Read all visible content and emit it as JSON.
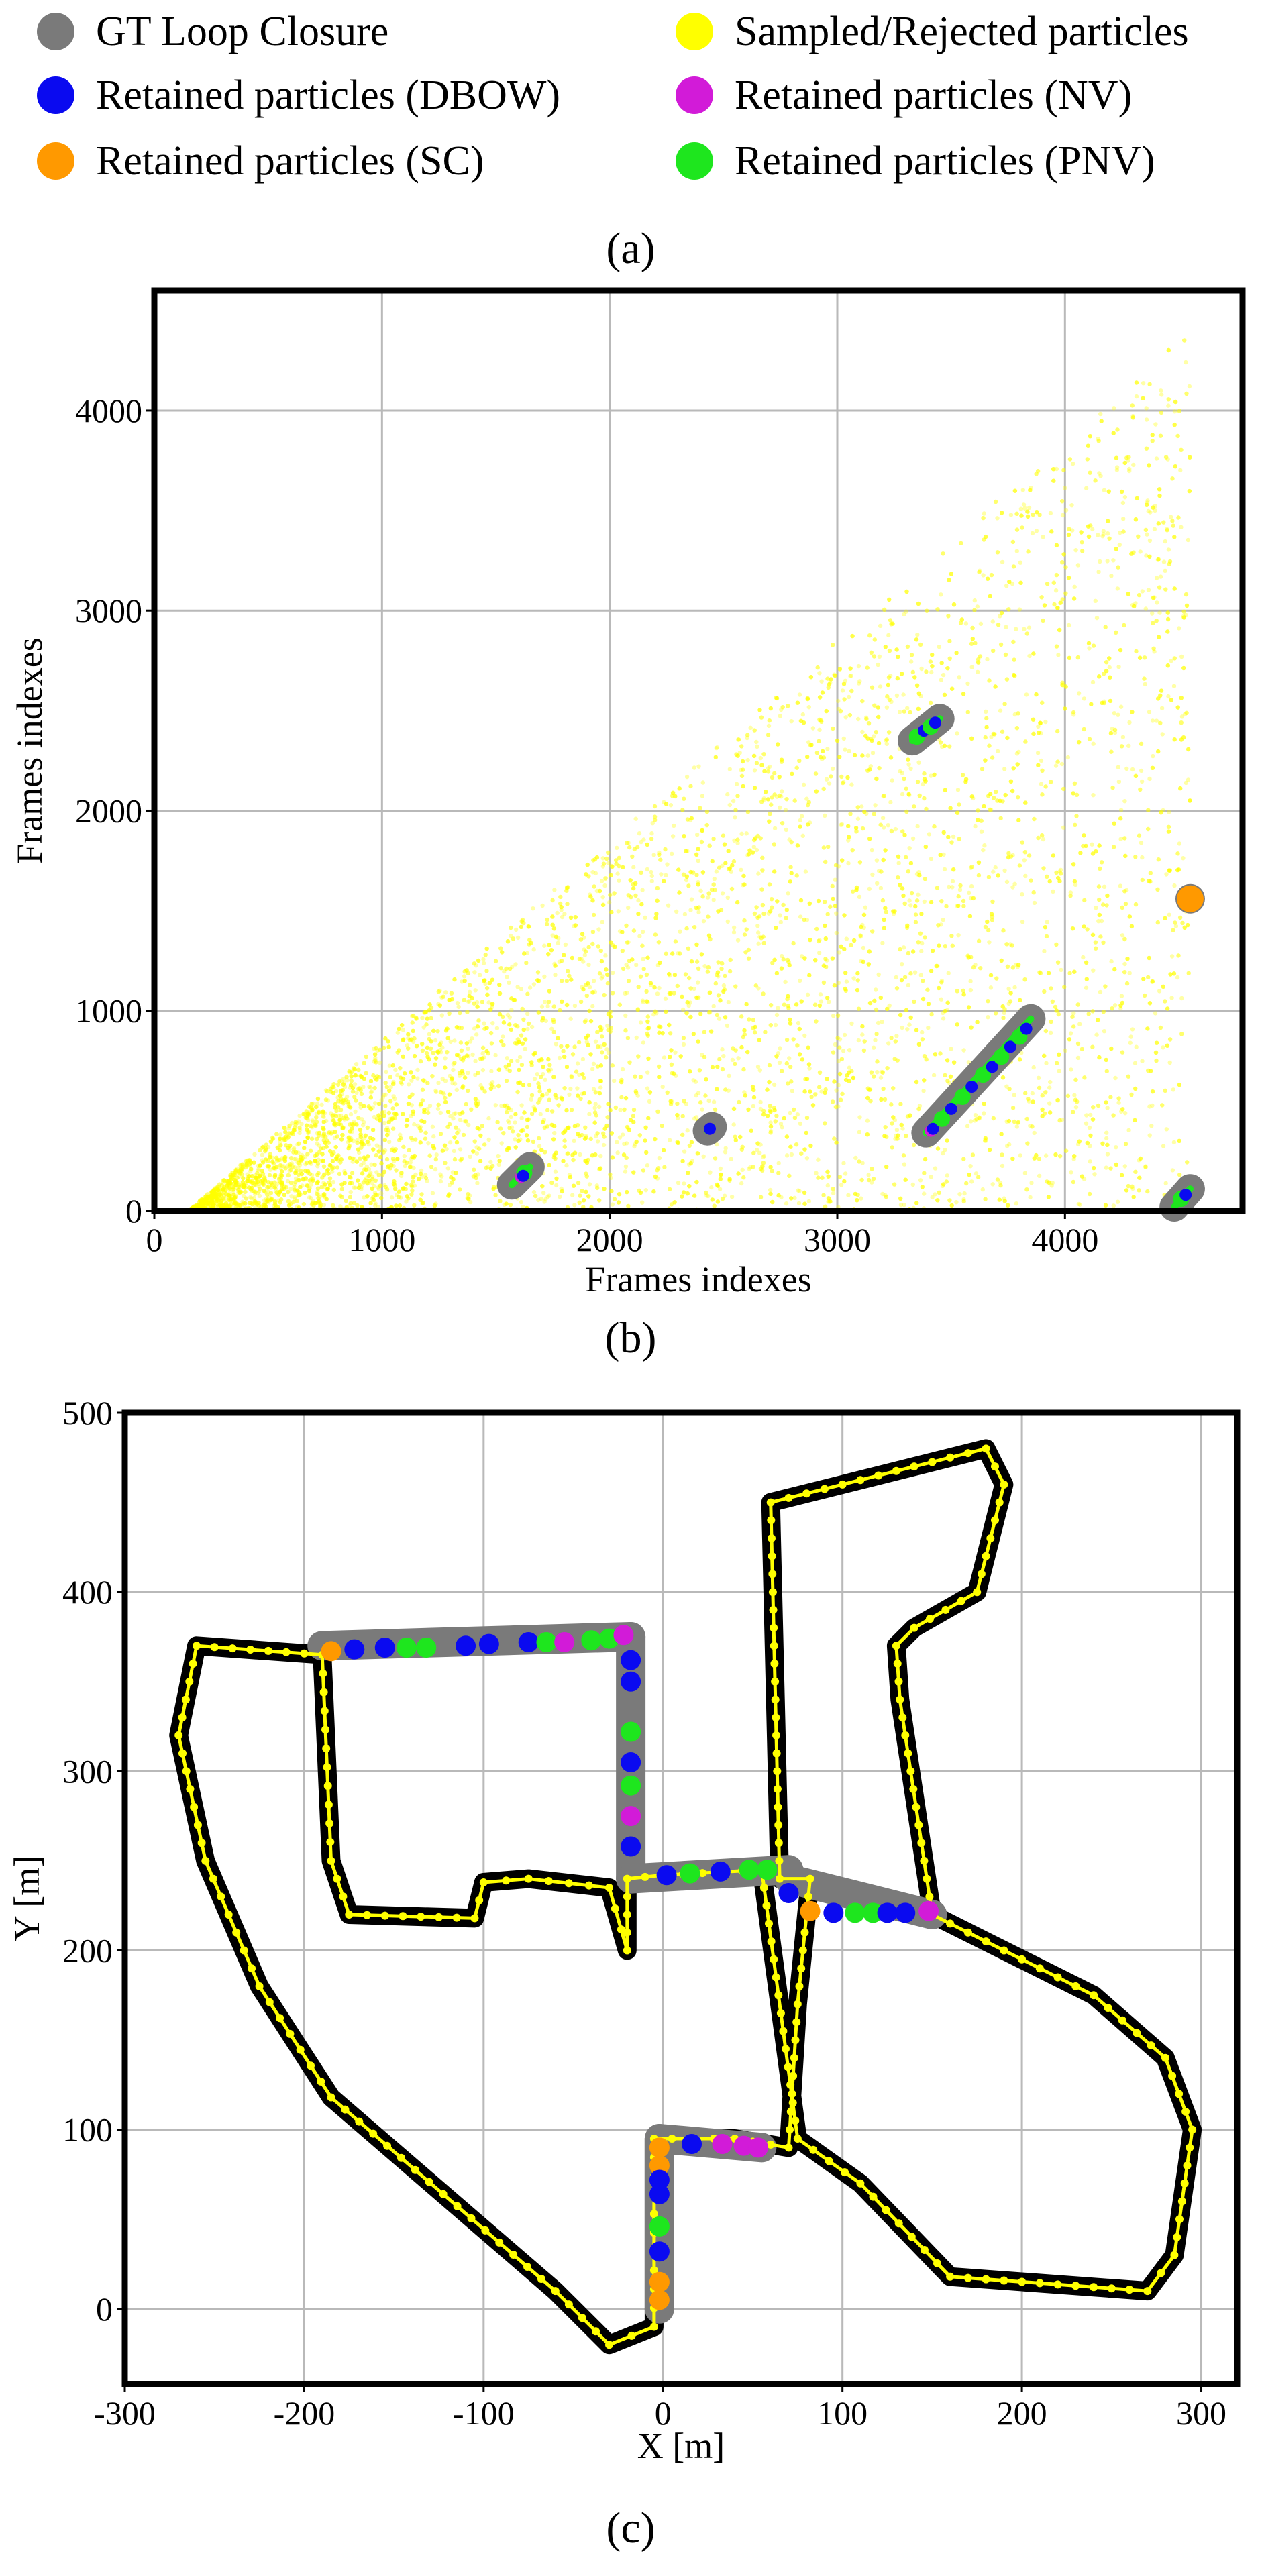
{
  "legend": {
    "entries": [
      {
        "key": "gt",
        "label": "GT Loop Closure",
        "color": "#7a7a7a"
      },
      {
        "key": "sampled",
        "label": "Sampled/Rejected particles",
        "color": "#ffff00"
      },
      {
        "key": "dbow",
        "label": "Retained particles (DBOW)",
        "color": "#0a0af0"
      },
      {
        "key": "nv",
        "label": "Retained particles (NV)",
        "color": "#d21bd8"
      },
      {
        "key": "sc",
        "label": "Retained particles (SC)",
        "color": "#ff9900"
      },
      {
        "key": "pnv",
        "label": "Retained particles (PNV)",
        "color": "#1ee61e"
      }
    ]
  },
  "panels": {
    "a_label": "(a)",
    "b_label": "(b)",
    "c_label": "(c)"
  },
  "chart_data": [
    {
      "id": "b",
      "type": "scatter",
      "title": "",
      "xlabel": "Frames indexes",
      "ylabel": "Frames indexes",
      "xlim": [
        0,
        4780
      ],
      "ylim": [
        0,
        4600
      ],
      "xticks": [
        0,
        1000,
        2000,
        3000,
        4000
      ],
      "yticks": [
        0,
        1000,
        2000,
        3000,
        4000
      ],
      "grid": true,
      "sampled_region": {
        "x_start": 150,
        "x_end": 4550,
        "y_equals_x_minus": 150,
        "dense_until_x": 1000
      },
      "gt_loop_closures": [
        {
          "x": [
            1570,
            1650
          ],
          "y": [
            130,
            220
          ]
        },
        {
          "x": [
            2430,
            2450
          ],
          "y": [
            400,
            420
          ]
        },
        {
          "x": [
            3330,
            3450
          ],
          "y": [
            2350,
            2460
          ]
        },
        {
          "x": [
            3390,
            3850
          ],
          "y": [
            390,
            960
          ]
        },
        {
          "x": [
            4550,
            4550
          ],
          "y": [
            1560,
            1560
          ]
        },
        {
          "x": [
            4480,
            4550
          ],
          "y": [
            20,
            110
          ]
        }
      ],
      "retained_points": [
        {
          "series": "nv",
          "x": 1610,
          "y": 170
        },
        {
          "series": "pnv",
          "x": 1625,
          "y": 190
        },
        {
          "series": "dbow",
          "x": 1620,
          "y": 175
        },
        {
          "series": "nv",
          "x": 2440,
          "y": 410
        },
        {
          "series": "dbow",
          "x": 2440,
          "y": 410
        },
        {
          "series": "pnv",
          "x": 3350,
          "y": 2370
        },
        {
          "series": "dbow",
          "x": 3380,
          "y": 2400
        },
        {
          "series": "pnv",
          "x": 3410,
          "y": 2420
        },
        {
          "series": "dbow",
          "x": 3430,
          "y": 2440
        },
        {
          "series": "nv",
          "x": 3410,
          "y": 400
        },
        {
          "series": "dbow",
          "x": 3420,
          "y": 410
        },
        {
          "series": "pnv",
          "x": 3460,
          "y": 460
        },
        {
          "series": "dbow",
          "x": 3500,
          "y": 510
        },
        {
          "series": "pnv",
          "x": 3550,
          "y": 570
        },
        {
          "series": "dbow",
          "x": 3590,
          "y": 620
        },
        {
          "series": "pnv",
          "x": 3640,
          "y": 680
        },
        {
          "series": "dbow",
          "x": 3680,
          "y": 720
        },
        {
          "series": "pnv",
          "x": 3720,
          "y": 770
        },
        {
          "series": "dbow",
          "x": 3760,
          "y": 820
        },
        {
          "series": "pnv",
          "x": 3800,
          "y": 870
        },
        {
          "series": "dbow",
          "x": 3830,
          "y": 910
        },
        {
          "series": "sc",
          "x": 4550,
          "y": 1560
        },
        {
          "series": "pnv",
          "x": 4510,
          "y": 60
        },
        {
          "series": "dbow",
          "x": 4530,
          "y": 80
        }
      ]
    },
    {
      "id": "c",
      "type": "line",
      "title": "",
      "xlabel": "X [m]",
      "ylabel": "Y [m]",
      "xlim": [
        -300,
        320
      ],
      "ylim": [
        -42,
        500
      ],
      "xticks": [
        -300,
        -200,
        -100,
        0,
        100,
        200,
        300
      ],
      "yticks": [
        0,
        100,
        200,
        300,
        400,
        500
      ],
      "grid": true,
      "trajectory": {
        "x": [
          -190,
          -260,
          -270,
          -255,
          -225,
          -185,
          -60,
          -30,
          -5,
          -5,
          5,
          40,
          70,
          75,
          82,
          65,
          60,
          100,
          180,
          190,
          175,
          140,
          130,
          132,
          150,
          180,
          200,
          240,
          280,
          295,
          285,
          270,
          160,
          110,
          75,
          55,
          0,
          -20,
          -20,
          -30,
          -75,
          -100,
          -105,
          -175,
          -185,
          -190
        ],
        "y": [
          365,
          370,
          320,
          250,
          180,
          118,
          10,
          -20,
          -10,
          95,
          95,
          95,
          90,
          170,
          240,
          240,
          450,
          460,
          480,
          460,
          400,
          380,
          370,
          340,
          220,
          205,
          195,
          175,
          140,
          100,
          30,
          10,
          18,
          70,
          95,
          245,
          242,
          240,
          200,
          235,
          240,
          238,
          218,
          220,
          250,
          365
        ]
      },
      "gt_loop_closure_segments": [
        {
          "x": [
            -190,
            -18
          ],
          "y": [
            370,
            375
          ]
        },
        {
          "x": [
            -18,
            -18
          ],
          "y": [
            375,
            240
          ]
        },
        {
          "x": [
            -18,
            70
          ],
          "y": [
            240,
            245
          ]
        },
        {
          "x": [
            70,
            150
          ],
          "y": [
            240,
            220
          ]
        },
        {
          "x": [
            -2,
            -2
          ],
          "y": [
            0,
            95
          ]
        },
        {
          "x": [
            -2,
            55
          ],
          "y": [
            95,
            90
          ]
        }
      ],
      "retained_points": [
        {
          "series": "sc",
          "x": -185,
          "y": 367
        },
        {
          "series": "dbow",
          "x": -172,
          "y": 368
        },
        {
          "series": "dbow",
          "x": -155,
          "y": 369
        },
        {
          "series": "pnv",
          "x": -143,
          "y": 369
        },
        {
          "series": "pnv",
          "x": -132,
          "y": 369
        },
        {
          "series": "dbow",
          "x": -110,
          "y": 370
        },
        {
          "series": "dbow",
          "x": -97,
          "y": 371
        },
        {
          "series": "dbow",
          "x": -75,
          "y": 372
        },
        {
          "series": "pnv",
          "x": -65,
          "y": 372
        },
        {
          "series": "nv",
          "x": -55,
          "y": 372
        },
        {
          "series": "pnv",
          "x": -40,
          "y": 373
        },
        {
          "series": "pnv",
          "x": -30,
          "y": 374
        },
        {
          "series": "nv",
          "x": -22,
          "y": 376
        },
        {
          "series": "dbow",
          "x": -18,
          "y": 362
        },
        {
          "series": "dbow",
          "x": -18,
          "y": 350
        },
        {
          "series": "pnv",
          "x": -18,
          "y": 322
        },
        {
          "series": "dbow",
          "x": -18,
          "y": 305
        },
        {
          "series": "pnv",
          "x": -18,
          "y": 292
        },
        {
          "series": "nv",
          "x": -18,
          "y": 275
        },
        {
          "series": "dbow",
          "x": -18,
          "y": 258
        },
        {
          "series": "dbow",
          "x": 2,
          "y": 242
        },
        {
          "series": "pnv",
          "x": 15,
          "y": 243
        },
        {
          "series": "dbow",
          "x": 32,
          "y": 244
        },
        {
          "series": "pnv",
          "x": 48,
          "y": 245
        },
        {
          "series": "pnv",
          "x": 58,
          "y": 245
        },
        {
          "series": "dbow",
          "x": 70,
          "y": 232
        },
        {
          "series": "sc",
          "x": 82,
          "y": 222
        },
        {
          "series": "dbow",
          "x": 95,
          "y": 221
        },
        {
          "series": "pnv",
          "x": 107,
          "y": 221
        },
        {
          "series": "pnv",
          "x": 117,
          "y": 221
        },
        {
          "series": "dbow",
          "x": 125,
          "y": 221
        },
        {
          "series": "dbow",
          "x": 135,
          "y": 221
        },
        {
          "series": "nv",
          "x": 148,
          "y": 222
        },
        {
          "series": "sc",
          "x": -2,
          "y": 90
        },
        {
          "series": "sc",
          "x": -2,
          "y": 80
        },
        {
          "series": "dbow",
          "x": -2,
          "y": 72
        },
        {
          "series": "dbow",
          "x": -2,
          "y": 64
        },
        {
          "series": "pnv",
          "x": -2,
          "y": 46
        },
        {
          "series": "dbow",
          "x": -2,
          "y": 32
        },
        {
          "series": "sc",
          "x": -2,
          "y": 15
        },
        {
          "series": "sc",
          "x": -2,
          "y": 5
        },
        {
          "series": "dbow",
          "x": 16,
          "y": 92
        },
        {
          "series": "nv",
          "x": 33,
          "y": 92
        },
        {
          "series": "nv",
          "x": 45,
          "y": 91
        },
        {
          "series": "nv",
          "x": 53,
          "y": 90
        }
      ]
    }
  ]
}
